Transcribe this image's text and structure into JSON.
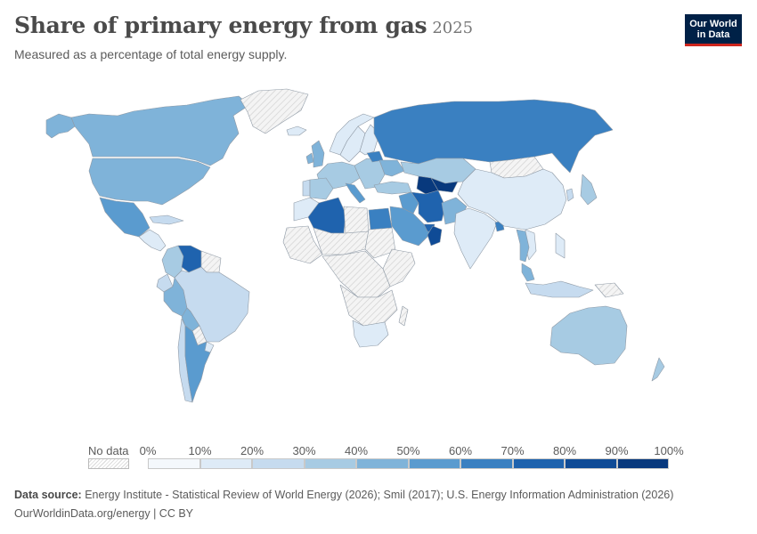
{
  "header": {
    "title": "Share of primary energy from gas",
    "year": "2025",
    "subtitle": "Measured as a percentage of total energy supply."
  },
  "logo": {
    "line1": "Our World",
    "line2": "in Data"
  },
  "legend": {
    "no_data_label": "No data",
    "ticks": [
      "0%",
      "10%",
      "20%",
      "30%",
      "40%",
      "50%",
      "60%",
      "70%",
      "80%",
      "90%",
      "100%"
    ],
    "colors": [
      "#f4f8fc",
      "#deebf7",
      "#c6dbef",
      "#a7cbe3",
      "#7fb3d9",
      "#5a9bcf",
      "#3a80c1",
      "#1f63ae",
      "#0f4b96",
      "#08397d",
      "#062c63"
    ]
  },
  "colors": {
    "border": "#8f9aa6",
    "nodata": "#e8e8e8",
    "nodata_stripe": "#cfcfcf"
  },
  "regions": [
    {
      "name": "Canada",
      "share": 30
    },
    {
      "name": "Alaska",
      "share": 30
    },
    {
      "name": "United States",
      "share": 34
    },
    {
      "name": "Mexico",
      "share": 48
    },
    {
      "name": "Central America",
      "share": 2
    },
    {
      "name": "Cuba",
      "share": 10
    },
    {
      "name": "Colombia",
      "share": 22
    },
    {
      "name": "Venezuela",
      "share": 66
    },
    {
      "name": "Guyana",
      "share": 0,
      "no_data": true
    },
    {
      "name": "Ecuador",
      "share": 12
    },
    {
      "name": "Peru",
      "share": 38
    },
    {
      "name": "Brazil",
      "share": 12
    },
    {
      "name": "Bolivia",
      "share": 34
    },
    {
      "name": "Paraguay",
      "share": 0,
      "no_data": true
    },
    {
      "name": "Chile",
      "share": 18
    },
    {
      "name": "Argentina",
      "share": 48
    },
    {
      "name": "Uruguay",
      "share": 6
    },
    {
      "name": "Greenland",
      "share": 0,
      "no_data": true
    },
    {
      "name": "Iceland",
      "share": 3
    },
    {
      "name": "United Kingdom",
      "share": 36
    },
    {
      "name": "Ireland",
      "share": 32
    },
    {
      "name": "Norway",
      "share": 8
    },
    {
      "name": "Sweden",
      "share": 3
    },
    {
      "name": "Finland",
      "share": 6
    },
    {
      "name": "Western Europe",
      "share": 22
    },
    {
      "name": "Spain",
      "share": 20
    },
    {
      "name": "Portugal",
      "share": 18
    },
    {
      "name": "Italy",
      "share": 40
    },
    {
      "name": "Eastern Europe",
      "share": 28
    },
    {
      "name": "Ukraine",
      "share": 30
    },
    {
      "name": "Belarus",
      "share": 58
    },
    {
      "name": "Russia",
      "share": 55
    },
    {
      "name": "Kazakhstan",
      "share": 25
    },
    {
      "name": "Turkmenistan",
      "share": 80
    },
    {
      "name": "Uzbekistan",
      "share": 85
    },
    {
      "name": "Turkey",
      "share": 28
    },
    {
      "name": "Iran",
      "share": 68
    },
    {
      "name": "Iraq",
      "share": 40
    },
    {
      "name": "Saudi Arabia",
      "share": 40
    },
    {
      "name": "Oman",
      "share": 74
    },
    {
      "name": "UAE",
      "share": 62
    },
    {
      "name": "Pakistan",
      "share": 38
    },
    {
      "name": "India",
      "share": 6
    },
    {
      "name": "Bangladesh",
      "share": 50
    },
    {
      "name": "Mongolia",
      "share": 0,
      "no_data": true
    },
    {
      "name": "China",
      "share": 9
    },
    {
      "name": "South Korea",
      "share": 18
    },
    {
      "name": "Japan",
      "share": 20
    },
    {
      "name": "Thailand",
      "share": 35
    },
    {
      "name": "Malaysia",
      "share": 38
    },
    {
      "name": "Vietnam",
      "share": 8
    },
    {
      "name": "Philippines",
      "share": 8
    },
    {
      "name": "Indonesia",
      "share": 15
    },
    {
      "name": "Papua New Guinea",
      "share": 0,
      "no_data": true
    },
    {
      "name": "Australia",
      "share": 26
    },
    {
      "name": "New Zealand",
      "share": 20
    },
    {
      "name": "Morocco",
      "share": 5
    },
    {
      "name": "Algeria",
      "share": 64
    },
    {
      "name": "Libya",
      "share": 0,
      "no_data": true
    },
    {
      "name": "Egypt",
      "share": 52
    },
    {
      "name": "West Africa",
      "share": 0,
      "no_data": true
    },
    {
      "name": "Sahel",
      "share": 0,
      "no_data": true
    },
    {
      "name": "Sudan",
      "share": 0,
      "no_data": true
    },
    {
      "name": "East Africa",
      "share": 0,
      "no_data": true
    },
    {
      "name": "Central Africa",
      "share": 0,
      "no_data": true
    },
    {
      "name": "Southern Africa",
      "share": 0,
      "no_data": true
    },
    {
      "name": "South Africa",
      "share": 3
    },
    {
      "name": "Madagascar",
      "share": 0,
      "no_data": true
    }
  ],
  "footer": {
    "source_label": "Data source:",
    "source_text": "Energy Institute - Statistical Review of World Energy (2026); Smil (2017); U.S. Energy Information Administration (2026)",
    "credit": "OurWorldinData.org/energy | CC BY"
  }
}
